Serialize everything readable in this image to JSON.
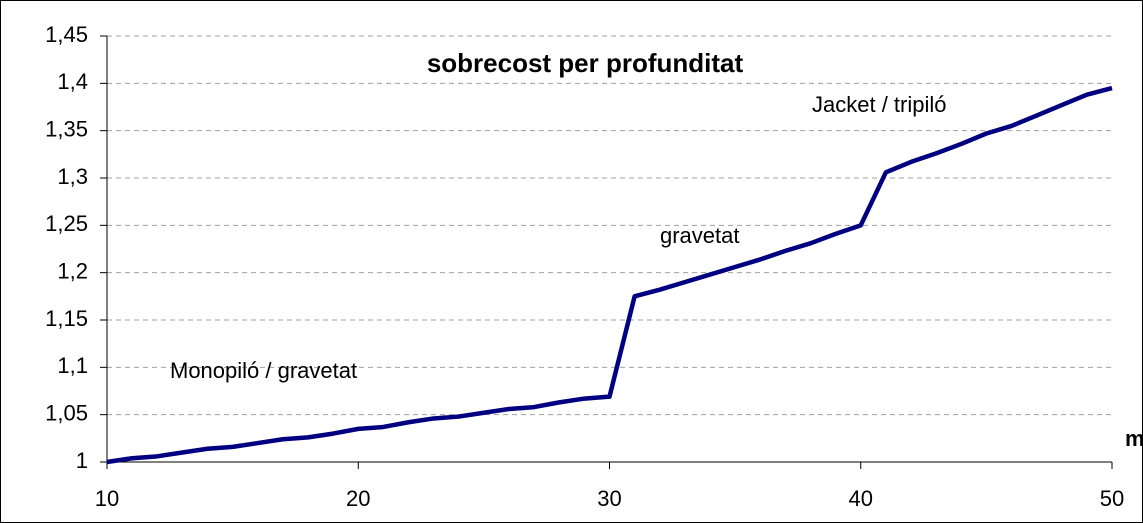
{
  "chart_data": {
    "type": "line",
    "title": "sobrecost per profunditat",
    "x_label": "m",
    "annotations": [
      "Monopiló / gravetat",
      "gravetat",
      "Jacket / tripiló"
    ],
    "x": [
      10,
      11,
      12,
      13,
      14,
      15,
      16,
      17,
      18,
      19,
      20,
      21,
      22,
      23,
      24,
      25,
      26,
      27,
      28,
      29,
      30,
      31,
      32,
      33,
      34,
      35,
      36,
      37,
      38,
      39,
      40,
      41,
      42,
      43,
      44,
      45,
      46,
      47,
      48,
      49,
      50
    ],
    "series": [
      {
        "name": "sobrecost",
        "color": "#000080",
        "values": [
          1.0,
          1.004,
          1.006,
          1.01,
          1.014,
          1.016,
          1.02,
          1.024,
          1.026,
          1.03,
          1.035,
          1.037,
          1.042,
          1.046,
          1.048,
          1.052,
          1.056,
          1.058,
          1.063,
          1.067,
          1.069,
          1.175,
          1.182,
          1.19,
          1.198,
          1.206,
          1.214,
          1.223,
          1.231,
          1.241,
          1.25,
          1.306,
          1.317,
          1.326,
          1.336,
          1.347,
          1.355,
          1.366,
          1.377,
          1.388,
          1.395
        ]
      }
    ],
    "xlim": [
      10,
      50
    ],
    "xticks": [
      10,
      20,
      30,
      40,
      50
    ],
    "ylim": [
      1,
      1.45
    ],
    "yticks": [
      1,
      {
        "value": 1.05,
        "label": "1,05"
      },
      {
        "value": 1.1,
        "label": "1,1"
      },
      {
        "value": 1.15,
        "label": "1,15"
      },
      {
        "value": 1.2,
        "label": "1,2"
      },
      {
        "value": 1.25,
        "label": "1,25"
      },
      {
        "value": 1.3,
        "label": "1,3"
      },
      {
        "value": 1.35,
        "label": "1,35"
      },
      {
        "value": 1.4,
        "label": "1,4"
      },
      {
        "value": 1.45,
        "label": "1,45"
      }
    ],
    "grid": true
  }
}
